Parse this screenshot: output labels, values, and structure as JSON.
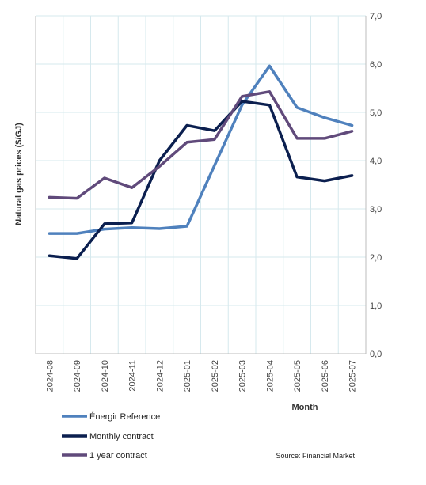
{
  "chart_data": {
    "type": "line",
    "xlabel": "Month",
    "ylabel": "Natural gas prices ($/GJ)",
    "ylim": [
      0,
      7
    ],
    "ytick_values": [
      0,
      1,
      2,
      3,
      4,
      5,
      6,
      7
    ],
    "yticks": [
      "0,0",
      "1,0",
      "2,0",
      "3,0",
      "4,0",
      "5,0",
      "6,0",
      "7,0"
    ],
    "categories": [
      "2024-08",
      "2024-09",
      "2024-10",
      "2024-11",
      "2024-12",
      "2025-01",
      "2025-02",
      "2025-03",
      "2025-04",
      "2025-05",
      "2025-06",
      "2025-07"
    ],
    "grid": true,
    "y_axis_position": "right",
    "legend_position": "bottom-left",
    "series": [
      {
        "name": "Énergir Reference",
        "color": "#4F81BD",
        "values": [
          2.49,
          2.49,
          2.58,
          2.61,
          2.59,
          2.64,
          3.9,
          5.15,
          5.96,
          5.1,
          4.89,
          4.73
        ]
      },
      {
        "name": "Monthly contract",
        "color": "#0B1F4F",
        "values": [
          2.03,
          1.97,
          2.69,
          2.71,
          4.0,
          4.73,
          4.62,
          5.23,
          5.15,
          3.66,
          3.58,
          3.69
        ]
      },
      {
        "name": "1 year contract",
        "color": "#604A7B",
        "values": [
          3.24,
          3.22,
          3.64,
          3.44,
          3.88,
          4.38,
          4.44,
          5.33,
          5.43,
          4.46,
          4.46,
          4.61
        ]
      }
    ],
    "source": "Source: Financial Market"
  }
}
